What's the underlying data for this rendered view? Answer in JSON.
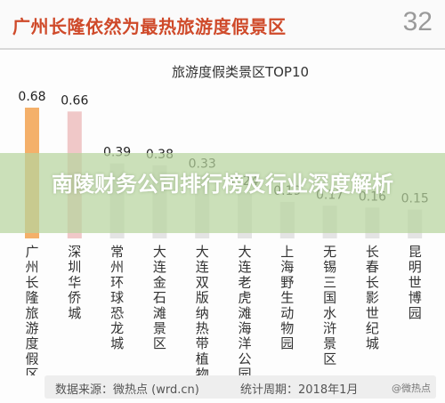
{
  "header": {
    "title": "广州长隆依然为最热旅游度假景区",
    "page_number": "32"
  },
  "banner": {
    "text": "南陵财务公司排行榜及行业深度解析"
  },
  "footer": {
    "source": "数据来源：微热点 (wrd.cn)",
    "period": "统计周期：2018年1月",
    "watermark": "@微热点"
  },
  "colors": {
    "title_red": "#cf4a2a",
    "bar_highlight": "#f4b06a",
    "bar_pink": "#f0c8c8",
    "bar_default": "#e4e4e4",
    "banner_green": "#b7d49e"
  },
  "chart_data": {
    "type": "bar",
    "title": "旅游度假类景区TOP10",
    "categories": [
      "广州长隆旅游度假区",
      "深圳华侨城",
      "常州环球恐龙城",
      "大连金石滩景区",
      "大连双版纳热带植物园",
      "大连老虎滩海洋公园",
      "上海野生动物园",
      "无锡三国水浒景区",
      "长春长影世纪城",
      "昆明世博园"
    ],
    "values": [
      0.68,
      0.66,
      0.39,
      0.38,
      0.33,
      0.24,
      0.19,
      0.17,
      0.16,
      0.15
    ],
    "value_labels": [
      "0.68",
      "0.66",
      "0.39",
      "0.38",
      "0.33",
      "0.24",
      "0.19",
      "0.17",
      "0.16",
      "0.15"
    ],
    "xlabel": "",
    "ylabel": "",
    "ylim": [
      0,
      0.75
    ],
    "grid": false,
    "legend": "none"
  }
}
